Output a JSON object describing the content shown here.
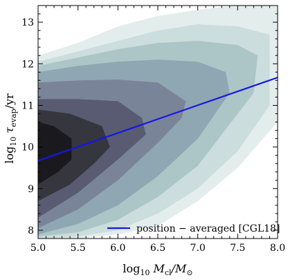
{
  "chart_data": {
    "type": "area",
    "title": "",
    "xlabel": "log₁₀ M_cl/M_⊙",
    "ylabel": "log₁₀ τ_evap/yr",
    "xlabel_parts": {
      "lead": "log",
      "sub10": "10",
      "sym": "M",
      "symsub": "cl",
      "slash": "/M",
      "sun": "⊙"
    },
    "ylabel_parts": {
      "lead": "log",
      "sub10": "10",
      "sym": "τ",
      "symsub": "evap",
      "tail": "/yr"
    },
    "xlim": [
      5.0,
      8.0
    ],
    "ylim": [
      7.8,
      13.4
    ],
    "xticks": [
      "5.0",
      "5.5",
      "6.0",
      "6.5",
      "7.0",
      "7.5",
      "8.0"
    ],
    "yticks": [
      "8",
      "9",
      "10",
      "11",
      "12",
      "13"
    ],
    "grid": false,
    "legend_position": "bottom-right",
    "density_levels": [
      {
        "level": 1,
        "color": "#e3eeec",
        "outline": [
          [
            5.0,
            12.2
          ],
          [
            5.5,
            12.5
          ],
          [
            6.0,
            12.9
          ],
          [
            6.5,
            13.15
          ],
          [
            7.0,
            13.3
          ],
          [
            7.5,
            13.4
          ],
          [
            8.0,
            13.4
          ],
          [
            8.0,
            10.6
          ],
          [
            7.5,
            9.5
          ],
          [
            7.0,
            8.7
          ],
          [
            6.5,
            8.1
          ],
          [
            6.0,
            7.9
          ],
          [
            5.5,
            7.8
          ],
          [
            5.0,
            7.8
          ]
        ]
      },
      {
        "level": 2,
        "color": "#cbdddc",
        "outline": [
          [
            5.0,
            12.05
          ],
          [
            5.5,
            12.3
          ],
          [
            6.0,
            12.55
          ],
          [
            6.5,
            12.8
          ],
          [
            7.0,
            12.95
          ],
          [
            7.5,
            12.9
          ],
          [
            7.9,
            12.7
          ],
          [
            7.9,
            11.0
          ],
          [
            7.5,
            9.9
          ],
          [
            7.0,
            9.0
          ],
          [
            6.5,
            8.4
          ],
          [
            6.0,
            8.0
          ],
          [
            5.5,
            7.85
          ],
          [
            5.0,
            7.8
          ]
        ]
      },
      {
        "level": 3,
        "color": "#acc5c7",
        "outline": [
          [
            5.0,
            11.95
          ],
          [
            5.5,
            12.15
          ],
          [
            6.0,
            12.35
          ],
          [
            6.5,
            12.5
          ],
          [
            7.0,
            12.55
          ],
          [
            7.5,
            12.45
          ],
          [
            7.75,
            12.2
          ],
          [
            7.7,
            11.3
          ],
          [
            7.3,
            10.3
          ],
          [
            7.0,
            9.55
          ],
          [
            6.5,
            8.8
          ],
          [
            6.0,
            8.25
          ],
          [
            5.5,
            7.95
          ],
          [
            5.0,
            7.85
          ]
        ]
      },
      {
        "level": 4,
        "color": "#8fa7b2",
        "outline": [
          [
            5.0,
            11.8
          ],
          [
            5.5,
            11.95
          ],
          [
            6.0,
            12.05
          ],
          [
            6.5,
            12.1
          ],
          [
            7.0,
            12.05
          ],
          [
            7.35,
            11.8
          ],
          [
            7.4,
            11.3
          ],
          [
            7.0,
            10.2
          ],
          [
            6.5,
            9.3
          ],
          [
            6.0,
            8.6
          ],
          [
            5.5,
            8.15
          ],
          [
            5.0,
            7.9
          ]
        ]
      },
      {
        "level": 5,
        "color": "#7a8499",
        "outline": [
          [
            5.0,
            11.55
          ],
          [
            5.5,
            11.6
          ],
          [
            6.0,
            11.62
          ],
          [
            6.5,
            11.55
          ],
          [
            6.85,
            11.1
          ],
          [
            6.8,
            10.7
          ],
          [
            6.5,
            10.1
          ],
          [
            6.0,
            9.2
          ],
          [
            5.5,
            8.5
          ],
          [
            5.0,
            8.05
          ]
        ]
      },
      {
        "level": 6,
        "color": "#585b72",
        "outline": [
          [
            5.0,
            11.15
          ],
          [
            5.5,
            11.15
          ],
          [
            6.0,
            11.1
          ],
          [
            6.3,
            10.7
          ],
          [
            6.35,
            10.3
          ],
          [
            6.0,
            9.7
          ],
          [
            5.5,
            8.9
          ],
          [
            5.0,
            8.3
          ]
        ]
      },
      {
        "level": 7,
        "color": "#36363f",
        "outline": [
          [
            5.0,
            10.9
          ],
          [
            5.4,
            10.8
          ],
          [
            5.8,
            10.5
          ],
          [
            5.9,
            10.0
          ],
          [
            5.7,
            9.6
          ],
          [
            5.4,
            9.1
          ],
          [
            5.0,
            8.7
          ]
        ]
      },
      {
        "level": 8,
        "color": "#1a1a1e",
        "outline": [
          [
            5.0,
            10.6
          ],
          [
            5.2,
            10.5
          ],
          [
            5.42,
            10.2
          ],
          [
            5.42,
            9.7
          ],
          [
            5.25,
            9.4
          ],
          [
            5.0,
            9.1
          ]
        ]
      }
    ],
    "series": [
      {
        "name": "position − averaged [CGL18]",
        "color": "#1616e6",
        "x": [
          5.0,
          8.0
        ],
        "y": [
          9.67,
          11.67
        ]
      }
    ],
    "legend": {
      "entries": [
        {
          "label": "position − averaged [CGL18]",
          "color": "#1616e6"
        }
      ]
    }
  }
}
